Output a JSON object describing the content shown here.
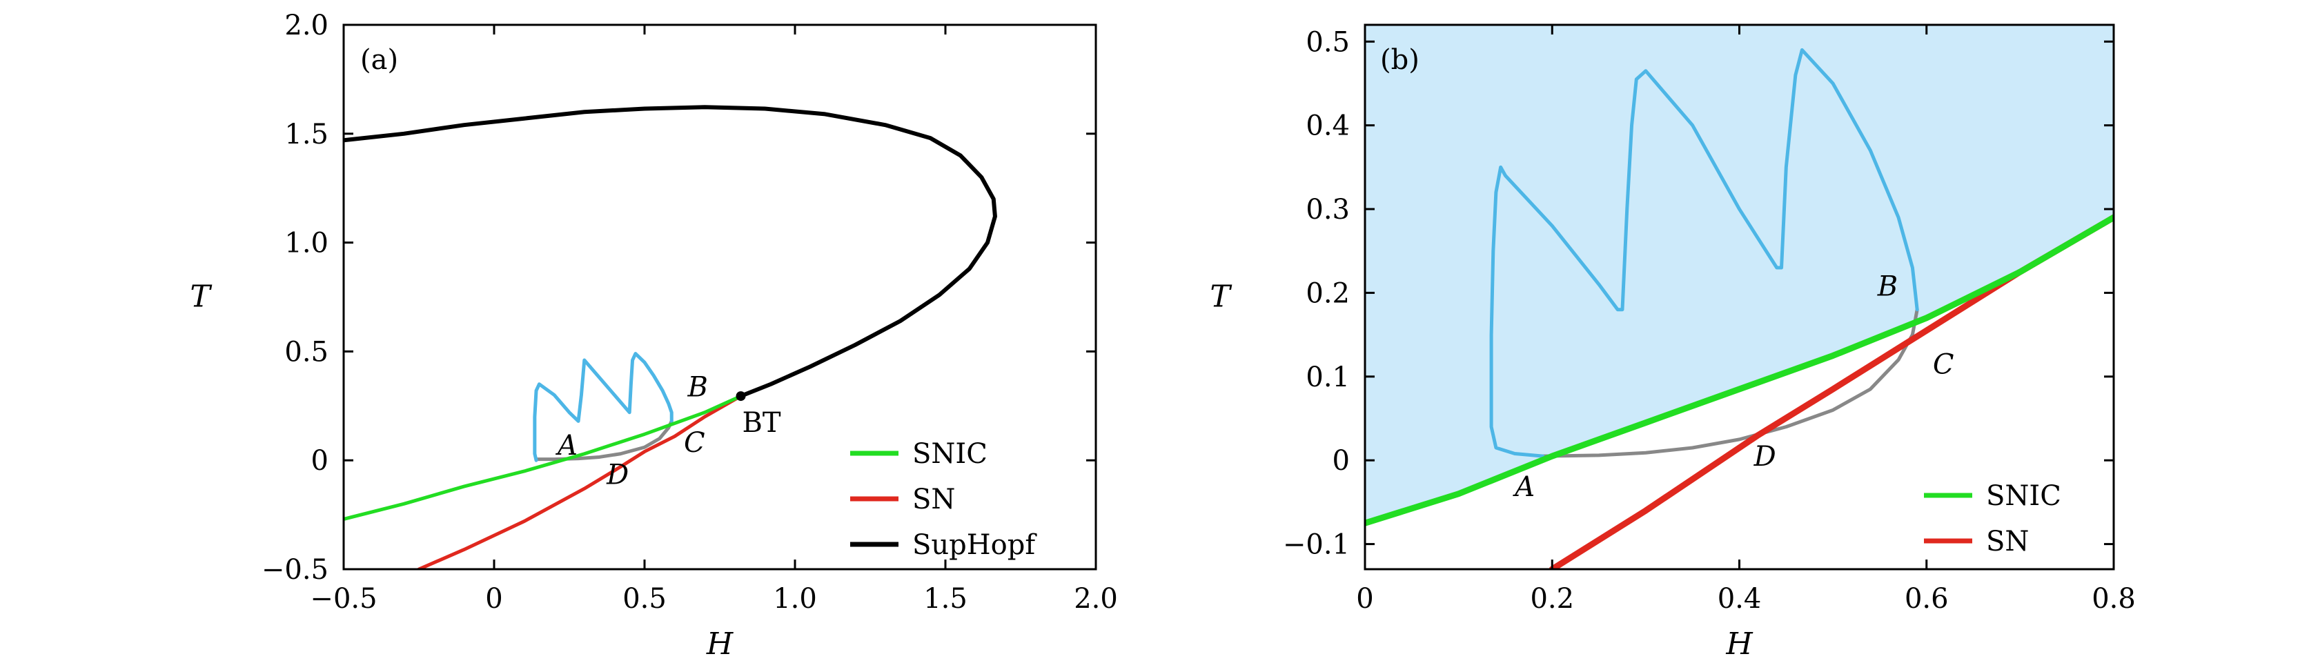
{
  "chart_data": [
    {
      "type": "line",
      "panel_label": "(a)",
      "xlabel": "H",
      "ylabel": "T",
      "xlim": [
        -0.5,
        2.0
      ],
      "ylim": [
        -0.5,
        2.0
      ],
      "xticks": [
        -0.5,
        0,
        0.5,
        1.0,
        1.5,
        2.0
      ],
      "xtick_labels": [
        "−0.5",
        "0",
        "0.5",
        "1.0",
        "1.5",
        "2.0"
      ],
      "yticks": [
        -0.5,
        0,
        0.5,
        1.0,
        1.5,
        2.0
      ],
      "ytick_labels": [
        "−0.5",
        "0",
        "0.5",
        "1.0",
        "1.5",
        "2.0"
      ],
      "legend_position": "bottom-right",
      "series": [
        {
          "name": "SNIC",
          "color": "#22dd22",
          "in_legend": true,
          "x": [
            -0.5,
            -0.3,
            -0.1,
            0.1,
            0.3,
            0.5,
            0.7,
            0.82
          ],
          "y": [
            -0.27,
            -0.2,
            -0.12,
            -0.05,
            0.03,
            0.12,
            0.22,
            0.295
          ]
        },
        {
          "name": "SN",
          "color": "#e0281e",
          "in_legend": true,
          "x": [
            -0.25,
            -0.1,
            0.1,
            0.3,
            0.42,
            0.5,
            0.6,
            0.7,
            0.82
          ],
          "y": [
            -0.5,
            -0.41,
            -0.28,
            -0.13,
            -0.03,
            0.04,
            0.11,
            0.2,
            0.295
          ]
        },
        {
          "name": "SupHopf",
          "color": "#000000",
          "in_legend": true,
          "x": [
            -0.5,
            -0.3,
            -0.1,
            0.1,
            0.3,
            0.5,
            0.7,
            0.9,
            1.1,
            1.3,
            1.45,
            1.55,
            1.62,
            1.66,
            1.665,
            1.64,
            1.58,
            1.48,
            1.35,
            1.2,
            1.05,
            0.92,
            0.82
          ],
          "y": [
            1.47,
            1.5,
            1.54,
            1.57,
            1.6,
            1.615,
            1.622,
            1.615,
            1.59,
            1.54,
            1.48,
            1.4,
            1.3,
            1.2,
            1.12,
            1.0,
            0.88,
            0.76,
            0.64,
            0.53,
            0.43,
            0.35,
            0.295
          ]
        },
        {
          "name": "cycle",
          "color": "#4db6e6",
          "in_legend": false,
          "x": [
            0.14,
            0.135,
            0.135,
            0.14,
            0.15,
            0.2,
            0.25,
            0.28,
            0.29,
            0.3,
            0.35,
            0.4,
            0.45,
            0.455,
            0.46,
            0.47,
            0.5,
            0.53,
            0.56,
            0.58,
            0.59,
            0.59
          ],
          "y": [
            0.0,
            0.03,
            0.2,
            0.32,
            0.35,
            0.3,
            0.22,
            0.18,
            0.3,
            0.46,
            0.38,
            0.3,
            0.22,
            0.35,
            0.46,
            0.49,
            0.45,
            0.39,
            0.32,
            0.26,
            0.22,
            0.18
          ]
        },
        {
          "name": "gray",
          "color": "#888888",
          "in_legend": false,
          "x": [
            0.14,
            0.2,
            0.28,
            0.35,
            0.42,
            0.5,
            0.55,
            0.58,
            0.59
          ],
          "y": [
            0.005,
            0.005,
            0.008,
            0.015,
            0.03,
            0.06,
            0.1,
            0.15,
            0.18
          ]
        }
      ],
      "points": [
        {
          "label": "A",
          "x": 0.18,
          "y": 0.0
        },
        {
          "label": "B",
          "x": 0.59,
          "y": 0.18
        },
        {
          "label": "C",
          "x": 0.565,
          "y": 0.14
        },
        {
          "label": "D",
          "x": 0.42,
          "y": 0.03
        }
      ],
      "bt": {
        "label": "BT",
        "x": 0.82,
        "y": 0.295
      }
    },
    {
      "type": "line",
      "panel_label": "(b)",
      "xlabel": "H",
      "ylabel": "T",
      "xlim": [
        0,
        0.8
      ],
      "ylim": [
        -0.13,
        0.52
      ],
      "xticks": [
        0,
        0.2,
        0.4,
        0.6,
        0.8
      ],
      "xtick_labels": [
        "0",
        "0.2",
        "0.4",
        "0.6",
        "0.8"
      ],
      "yticks": [
        -0.1,
        0,
        0.1,
        0.2,
        0.3,
        0.4,
        0.5
      ],
      "ytick_labels": [
        "−0.1",
        "0",
        "0.1",
        "0.2",
        "0.3",
        "0.4",
        "0.5"
      ],
      "legend_position": "bottom-right",
      "fill_color": "#cdeafa",
      "series": [
        {
          "name": "SNIC",
          "color": "#22dd22",
          "in_legend": true,
          "x": [
            0.0,
            0.1,
            0.2,
            0.3,
            0.4,
            0.5,
            0.6,
            0.7,
            0.8
          ],
          "y": [
            -0.075,
            -0.04,
            0.005,
            0.045,
            0.085,
            0.125,
            0.17,
            0.225,
            0.29
          ]
        },
        {
          "name": "SN",
          "color": "#e0281e",
          "in_legend": true,
          "x": [
            0.2,
            0.3,
            0.4,
            0.42,
            0.5,
            0.55,
            0.6,
            0.7,
            0.8
          ],
          "y": [
            -0.13,
            -0.06,
            0.015,
            0.03,
            0.085,
            0.12,
            0.155,
            0.225,
            0.29
          ]
        },
        {
          "name": "cycle",
          "color": "#4db6e6",
          "in_legend": false,
          "x": [
            0.19,
            0.16,
            0.14,
            0.135,
            0.135,
            0.137,
            0.14,
            0.145,
            0.15,
            0.2,
            0.25,
            0.27,
            0.275,
            0.28,
            0.285,
            0.29,
            0.3,
            0.35,
            0.4,
            0.44,
            0.445,
            0.45,
            0.46,
            0.467,
            0.5,
            0.54,
            0.57,
            0.585,
            0.59
          ],
          "y": [
            0.005,
            0.008,
            0.015,
            0.04,
            0.15,
            0.25,
            0.32,
            0.35,
            0.34,
            0.28,
            0.21,
            0.18,
            0.18,
            0.3,
            0.4,
            0.455,
            0.465,
            0.4,
            0.3,
            0.23,
            0.23,
            0.35,
            0.46,
            0.49,
            0.45,
            0.37,
            0.29,
            0.23,
            0.18
          ]
        },
        {
          "name": "gray",
          "color": "#888888",
          "in_legend": false,
          "x": [
            0.19,
            0.25,
            0.3,
            0.35,
            0.4,
            0.45,
            0.5,
            0.54,
            0.57,
            0.585,
            0.59
          ],
          "y": [
            0.005,
            0.006,
            0.009,
            0.015,
            0.025,
            0.04,
            0.06,
            0.085,
            0.12,
            0.15,
            0.18
          ]
        }
      ],
      "points": [
        {
          "label": "A",
          "x": 0.19,
          "y": 0.005
        },
        {
          "label": "B",
          "x": 0.585,
          "y": 0.18
        },
        {
          "label": "C",
          "x": 0.59,
          "y": 0.14
        },
        {
          "label": "D",
          "x": 0.42,
          "y": 0.03
        }
      ]
    }
  ]
}
